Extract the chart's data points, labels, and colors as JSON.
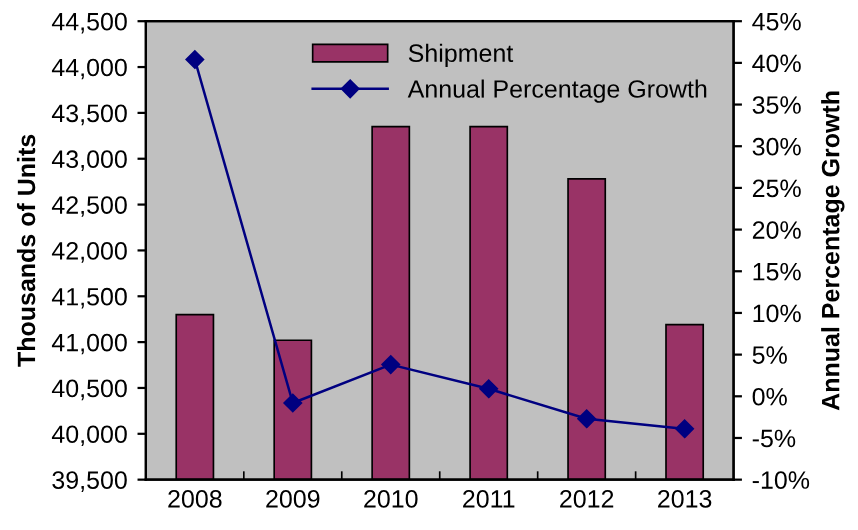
{
  "chart_data": {
    "type": "bar",
    "categories": [
      "2008",
      "2009",
      "2010",
      "2011",
      "2012",
      "2013"
    ],
    "series": [
      {
        "name": "Shipment",
        "color": "#993366",
        "values": [
          41300,
          41020,
          43350,
          43350,
          42780,
          41190
        ]
      },
      {
        "name": "Annual Percentage Growth",
        "type": "line",
        "axis": "y2",
        "color": "#000080",
        "marker": "diamond",
        "values": [
          40.4,
          -0.8,
          3.8,
          0.9,
          -2.7,
          -3.9
        ]
      }
    ],
    "ylabel": "Thousands of Units",
    "y2label": "Annual Percentage Growth",
    "ylim": [
      39500,
      44500
    ],
    "yticks": [
      {
        "value": 39500,
        "label": "39,500"
      },
      {
        "value": 40000,
        "label": "40,000"
      },
      {
        "value": 40500,
        "label": "40,500"
      },
      {
        "value": 41000,
        "label": "41,000"
      },
      {
        "value": 41500,
        "label": "41,500"
      },
      {
        "value": 42000,
        "label": "42,000"
      },
      {
        "value": 42500,
        "label": "42,500"
      },
      {
        "value": 43000,
        "label": "43,000"
      },
      {
        "value": 43500,
        "label": "43,500"
      },
      {
        "value": 44000,
        "label": "44,000"
      },
      {
        "value": 44500,
        "label": "44,500"
      }
    ],
    "y2lim": [
      -10,
      45
    ],
    "y2ticks": [
      {
        "value": -10,
        "label": "-10%"
      },
      {
        "value": -5,
        "label": "-5%"
      },
      {
        "value": 0,
        "label": "0%"
      },
      {
        "value": 5,
        "label": "5%"
      },
      {
        "value": 10,
        "label": "10%"
      },
      {
        "value": 15,
        "label": "15%"
      },
      {
        "value": 20,
        "label": "20%"
      },
      {
        "value": 25,
        "label": "25%"
      },
      {
        "value": 30,
        "label": "30%"
      },
      {
        "value": 35,
        "label": "35%"
      },
      {
        "value": 40,
        "label": "40%"
      },
      {
        "value": 45,
        "label": "45%"
      }
    ],
    "grid": false,
    "legend": "top"
  }
}
